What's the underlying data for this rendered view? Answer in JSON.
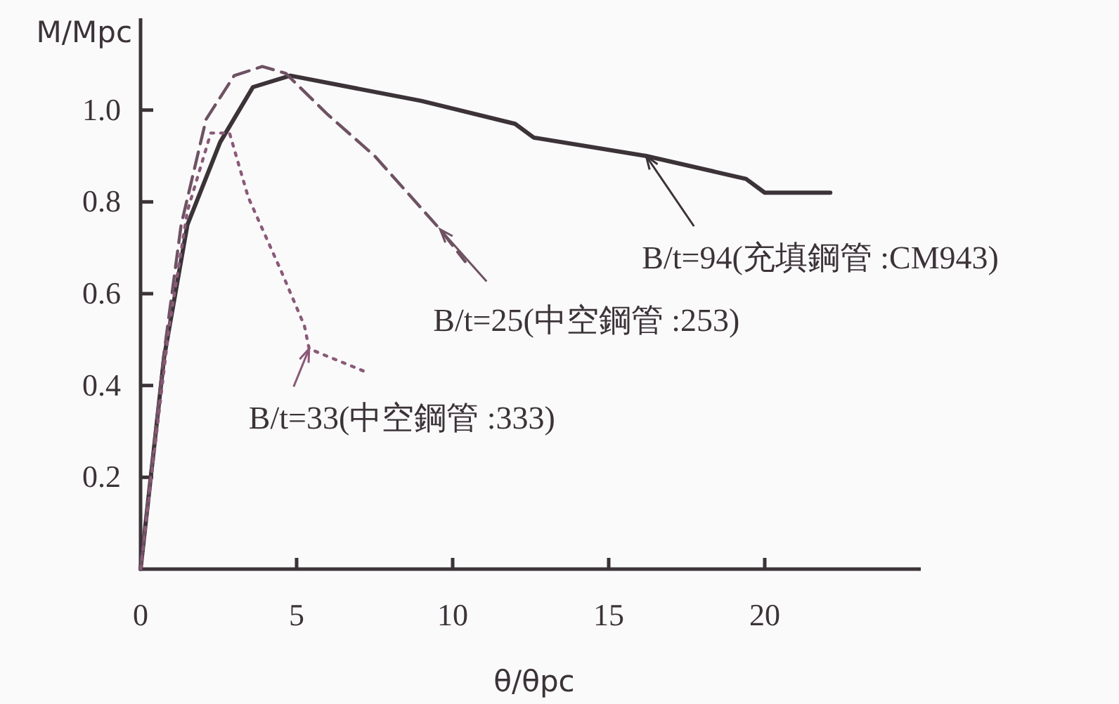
{
  "chart_data": {
    "type": "line",
    "xlabel": "θ/θpc",
    "ylabel": "M/Mpc",
    "xlim": [
      0,
      25
    ],
    "ylim": [
      0,
      1.2
    ],
    "xticks": [
      0,
      5,
      10,
      15,
      20
    ],
    "yticks": [
      0.2,
      0.4,
      0.6,
      {
        "value": 1,
        "label": "1.0"
      },
      0.8
    ],
    "grid": false,
    "marker": "none",
    "legend": "right",
    "series": [
      {
        "name": "B/t=94(充填鋼管 :CM943)",
        "color": "#3b3338",
        "line_style": "solid",
        "x": [
          0,
          0.75,
          1.5,
          2.55,
          3.6,
          4.8,
          9,
          12,
          12.6,
          16.2,
          19.4,
          20,
          22.1
        ],
        "values": [
          0,
          0.46,
          0.75,
          0.93,
          1.05,
          1.075,
          1.02,
          0.97,
          0.94,
          0.9,
          0.85,
          0.82,
          0.82
        ]
      },
      {
        "name": "B/t=25(中空鋼管 :253)",
        "color": "#6e5262",
        "line_style": "dashed",
        "x": [
          0,
          0.75,
          1.3,
          2.1,
          3,
          3.9,
          4.65,
          6,
          7.5,
          9.6,
          10.4
        ],
        "values": [
          0,
          0.47,
          0.75,
          0.98,
          1.075,
          1.095,
          1.08,
          0.99,
          0.9,
          0.74,
          0.67
        ]
      },
      {
        "name": "B/t=33(中空鋼管 :333)",
        "color": "#8a5a78",
        "line_style": "dotted",
        "x": [
          0,
          0.9,
          1.5,
          2.25,
          2.85,
          3.45,
          4.5,
          5.25,
          5.4,
          7.2
        ],
        "values": [
          0,
          0.52,
          0.78,
          0.95,
          0.95,
          0.81,
          0.65,
          0.53,
          0.48,
          0.43
        ]
      }
    ]
  }
}
